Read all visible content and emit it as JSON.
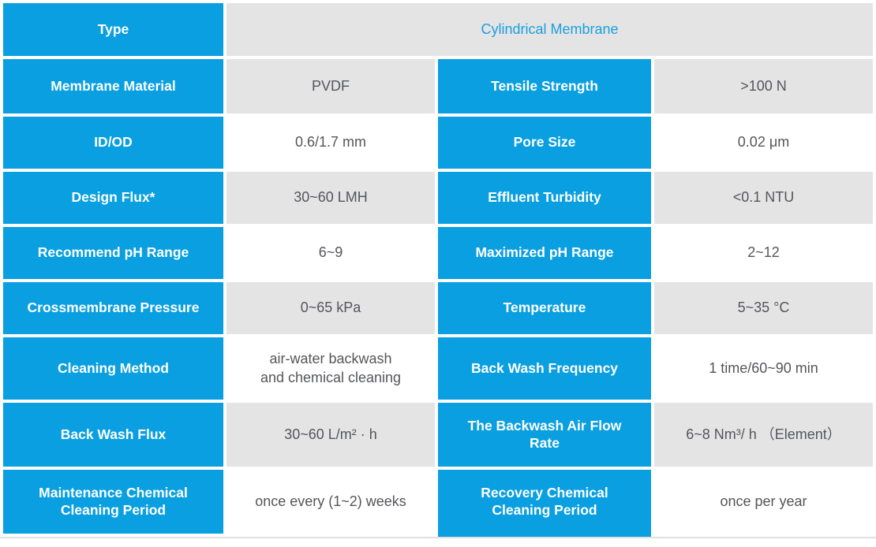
{
  "theme": {
    "header_bg": "#099fe0",
    "shade_bg": "#e4e4e4",
    "plain_bg": "#ffffff",
    "header_text": "#ffffff",
    "value_text": "#55565a",
    "accent_text": "#1b9fe0",
    "bottom_line": "#e0e0e0"
  },
  "table": {
    "type_row": {
      "label": "Type",
      "value": "Cylindrical Membrane"
    },
    "rows": [
      {
        "left_label": "Membrane Material",
        "left_value": "PVDF",
        "right_label": "Tensile Strength",
        "right_value": ">100 N",
        "shaded": true
      },
      {
        "left_label": "ID/OD",
        "left_value": "0.6/1.7 mm",
        "right_label": "Pore Size",
        "right_value": "0.02 μm",
        "shaded": false
      },
      {
        "left_label": "Design Flux*",
        "left_value": "30~60 LMH",
        "right_label": "Effluent Turbidity",
        "right_value": "<0.1 NTU",
        "shaded": true
      },
      {
        "left_label": "Recommend pH Range",
        "left_value": "6~9",
        "right_label": "Maximized pH Range",
        "right_value": "2~12",
        "shaded": false
      },
      {
        "left_label": "Crossmembrane Pressure",
        "left_value": "0~65 kPa",
        "right_label": "Temperature",
        "right_value": "5~35 °C",
        "shaded": true
      },
      {
        "left_label": "Cleaning Method",
        "left_value": "air-water backwash\nand chemical cleaning",
        "right_label": "Back Wash Frequency",
        "right_value": "1 time/60~90 min",
        "shaded": false
      },
      {
        "left_label": "Back Wash Flux",
        "left_value": "30~60 L/m² · h",
        "right_label": "The Backwash Air Flow\nRate",
        "right_value": "6~8 Nm³/ h （Element）",
        "shaded": true
      },
      {
        "left_label": "Maintenance Chemical\nCleaning Period",
        "left_value": "once every (1~2) weeks",
        "right_label": "Recovery Chemical\nCleaning Period",
        "right_value": "once per year",
        "shaded": false
      }
    ]
  }
}
